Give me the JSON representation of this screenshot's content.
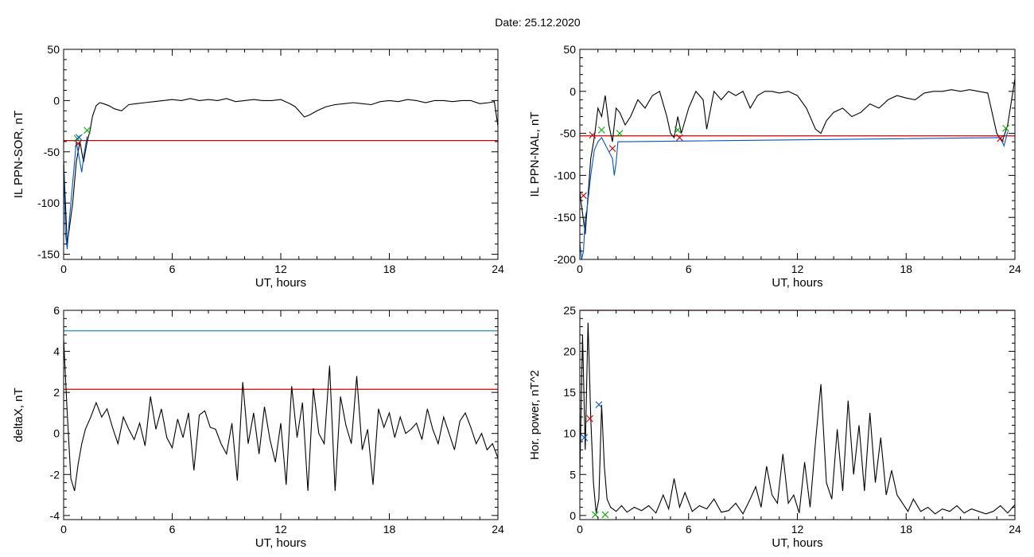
{
  "header": {
    "date_label": "Date:  25.12.2020"
  },
  "chart_data": [
    {
      "type": "line",
      "ylabel": "IL PPN-SOR, nT",
      "xlabel": "UT, hours",
      "xlim": [
        0,
        24
      ],
      "ylim": [
        -155,
        50
      ],
      "xticks": [
        0,
        6,
        12,
        18,
        24
      ],
      "yticks": [
        -150,
        -100,
        -50,
        0,
        50
      ],
      "threshold": {
        "value": -39,
        "color": "#cc0000"
      },
      "series": [
        {
          "color": "#000000",
          "x": [
            0.0,
            0.2,
            0.35,
            0.5,
            0.7,
            0.9,
            1.1,
            1.3,
            1.45,
            1.6,
            1.8,
            2.0,
            2.2,
            2.5,
            2.8,
            3.2,
            3.6,
            4.0,
            4.5,
            5.0,
            5.5,
            6.0,
            6.5,
            7.0,
            7.5,
            8.0,
            8.5,
            9.0,
            9.5,
            10.0,
            10.5,
            11.0,
            11.5,
            12.0,
            12.5,
            12.8,
            13.0,
            13.3,
            13.6,
            14.0,
            14.5,
            15.0,
            15.5,
            16.0,
            16.5,
            17.0,
            17.5,
            18.0,
            18.5,
            19.0,
            19.5,
            20.0,
            20.5,
            21.0,
            21.5,
            22.0,
            22.5,
            23.0,
            23.5,
            23.8,
            24.0
          ],
          "y": [
            -60,
            -140,
            -120,
            -100,
            -60,
            -40,
            -60,
            -40,
            -30,
            -15,
            -5,
            -2,
            -3,
            -5,
            -8,
            -10,
            -4,
            -3,
            -2,
            -1,
            0,
            1,
            0,
            2,
            0,
            1,
            0,
            2,
            -1,
            0,
            1,
            0,
            0,
            1,
            -3,
            -6,
            -10,
            -16,
            -14,
            -10,
            -6,
            -4,
            -3,
            -2,
            -3,
            -4,
            -1,
            0,
            -1,
            1,
            0,
            -2,
            0,
            0,
            -1,
            0,
            0,
            -3,
            -2,
            -1,
            -25
          ]
        },
        {
          "color": "#0055cc",
          "x": [
            0.0,
            0.1,
            0.2,
            0.3,
            0.4,
            0.5,
            0.6,
            0.7,
            0.8,
            0.9,
            1.0,
            1.1,
            1.2,
            1.3
          ],
          "y": [
            -60,
            -130,
            -145,
            -120,
            -100,
            -80,
            -60,
            -40,
            -50,
            -60,
            -70,
            -55,
            -45,
            -35
          ]
        }
      ],
      "markers": [
        {
          "x": 0.8,
          "y": -42,
          "color": "#cc0000"
        },
        {
          "x": 0.75,
          "y": -37,
          "color": "#00aa00"
        },
        {
          "x": 1.3,
          "y": -29,
          "color": "#00aa00"
        },
        {
          "x": 0.85,
          "y": -36,
          "color": "#0055cc"
        }
      ]
    },
    {
      "type": "line",
      "ylabel": "IL PPN-NAL, nT",
      "xlabel": "UT, hours",
      "xlim": [
        0,
        24
      ],
      "ylim": [
        -200,
        50
      ],
      "xticks": [
        0,
        6,
        12,
        18,
        24
      ],
      "yticks": [
        -200,
        -150,
        -100,
        -50,
        0,
        50
      ],
      "threshold": {
        "value": -53,
        "color": "#cc0000"
      },
      "series": [
        {
          "color": "#000000",
          "x": [
            0.0,
            0.3,
            0.6,
            0.8,
            1.0,
            1.2,
            1.4,
            1.6,
            1.8,
            2.0,
            2.2,
            2.5,
            2.8,
            3.2,
            3.6,
            4.0,
            4.4,
            4.8,
            5.0,
            5.2,
            5.4,
            5.6,
            6.0,
            6.4,
            6.8,
            7.0,
            7.4,
            7.8,
            8.2,
            8.6,
            9.0,
            9.4,
            9.8,
            10.2,
            10.6,
            11.0,
            11.5,
            12.0,
            12.5,
            13.0,
            13.3,
            13.6,
            14.0,
            14.5,
            15.0,
            15.5,
            16.0,
            16.5,
            17.0,
            17.5,
            18.0,
            18.5,
            19.0,
            19.5,
            20.0,
            20.5,
            21.0,
            21.5,
            22.0,
            22.5,
            23.0,
            23.3,
            23.6,
            24.0
          ],
          "y": [
            -120,
            -170,
            -80,
            -55,
            -20,
            -30,
            -5,
            -40,
            -60,
            -20,
            -25,
            -40,
            -30,
            -10,
            -20,
            -5,
            0,
            -30,
            -50,
            -55,
            -30,
            -50,
            -20,
            0,
            -10,
            -45,
            0,
            -10,
            0,
            -5,
            0,
            -20,
            -5,
            0,
            0,
            -2,
            0,
            -5,
            -20,
            -45,
            -50,
            -35,
            -25,
            -20,
            -30,
            -25,
            -15,
            -20,
            -10,
            -5,
            -8,
            -10,
            -2,
            0,
            0,
            2,
            0,
            2,
            0,
            -2,
            -50,
            -60,
            -40,
            15
          ]
        },
        {
          "color": "#0055cc",
          "x": [
            0.0,
            0.1,
            0.2,
            0.3,
            0.4,
            0.5,
            0.6,
            0.8,
            1.0,
            1.2,
            1.8,
            1.9,
            2.0,
            2.1,
            23.2,
            23.4,
            23.6
          ],
          "y": [
            -180,
            -200,
            -190,
            -150,
            -140,
            -120,
            -100,
            -70,
            -60,
            -55,
            -80,
            -100,
            -85,
            -60,
            -55,
            -65,
            -48
          ]
        }
      ],
      "markers": [
        {
          "x": 0.7,
          "y": -52,
          "color": "#cc0000"
        },
        {
          "x": 1.8,
          "y": -68,
          "color": "#cc0000"
        },
        {
          "x": 5.5,
          "y": -55,
          "color": "#cc0000"
        },
        {
          "x": 23.2,
          "y": -56,
          "color": "#cc0000"
        },
        {
          "x": 1.2,
          "y": -46,
          "color": "#00aa00"
        },
        {
          "x": 2.2,
          "y": -50,
          "color": "#00aa00"
        },
        {
          "x": 5.4,
          "y": -46,
          "color": "#00aa00"
        },
        {
          "x": 23.5,
          "y": -44,
          "color": "#00aa00"
        },
        {
          "x": 0.2,
          "y": -124,
          "color": "#cc0000"
        }
      ]
    },
    {
      "type": "line",
      "ylabel": "deltaX, nT",
      "xlabel": "UT, hours",
      "xlim": [
        0,
        24
      ],
      "ylim": [
        -4.2,
        6
      ],
      "xticks": [
        0,
        6,
        12,
        18,
        24
      ],
      "yticks": [
        -4,
        -2,
        0,
        2,
        4,
        6
      ],
      "thresholds": [
        {
          "value": 5.0,
          "color": "#1f8fb0"
        },
        {
          "value": 2.15,
          "color": "#cc0000"
        }
      ],
      "series": [
        {
          "color": "#000000",
          "x": [
            0.0,
            0.2,
            0.4,
            0.6,
            0.8,
            1.0,
            1.2,
            1.5,
            1.8,
            2.1,
            2.4,
            2.7,
            3.0,
            3.3,
            3.6,
            3.9,
            4.2,
            4.5,
            4.8,
            5.1,
            5.4,
            5.7,
            6.0,
            6.3,
            6.6,
            6.9,
            7.2,
            7.5,
            7.8,
            8.1,
            8.4,
            8.7,
            9.0,
            9.3,
            9.6,
            9.9,
            10.2,
            10.5,
            10.8,
            11.1,
            11.4,
            11.7,
            12.0,
            12.3,
            12.6,
            12.9,
            13.2,
            13.5,
            13.8,
            14.1,
            14.4,
            14.7,
            15.0,
            15.3,
            15.6,
            15.9,
            16.2,
            16.5,
            16.8,
            17.1,
            17.4,
            17.7,
            18.0,
            18.3,
            18.6,
            18.9,
            19.2,
            19.5,
            19.8,
            20.1,
            20.4,
            20.7,
            21.0,
            21.3,
            21.6,
            21.9,
            22.2,
            22.5,
            22.8,
            23.1,
            23.4,
            23.7,
            24.0
          ],
          "y": [
            4.6,
            1.0,
            -2.2,
            -2.8,
            -1.5,
            -0.5,
            0.2,
            0.8,
            1.5,
            0.8,
            1.2,
            0.3,
            -0.5,
            0.8,
            0.2,
            -0.3,
            0.5,
            -0.6,
            1.8,
            0.2,
            1.2,
            -0.2,
            -0.7,
            0.7,
            -0.2,
            1.0,
            -1.8,
            0.9,
            1.1,
            0.3,
            0.2,
            -0.5,
            -1.0,
            0.5,
            -2.3,
            2.5,
            -0.5,
            1.0,
            -1.0,
            1.3,
            -0.3,
            -1.4,
            0.5,
            -2.5,
            2.3,
            -0.2,
            1.5,
            -2.8,
            2.2,
            0.0,
            -0.5,
            3.3,
            -2.8,
            1.8,
            0.4,
            -0.5,
            2.8,
            -0.8,
            0.2,
            -2.5,
            1.2,
            0.3,
            1.0,
            -0.2,
            0.8,
            0.0,
            0.2,
            0.5,
            -0.3,
            1.2,
            0.2,
            -0.5,
            0.8,
            0.0,
            -0.8,
            0.6,
            1.0,
            0.3,
            -0.5,
            0.0,
            -0.8,
            -0.5,
            -1.2
          ]
        }
      ],
      "markers": []
    },
    {
      "type": "line",
      "ylabel": "Hor. power, nT^2",
      "xlabel": "UT, hours",
      "xlim": [
        0,
        24
      ],
      "ylim": [
        -0.5,
        25
      ],
      "xticks": [
        0,
        6,
        12,
        18,
        24
      ],
      "yticks": [
        0,
        5,
        10,
        15,
        20,
        25
      ],
      "threshold": {
        "value": 25,
        "color": "#cc0000"
      },
      "series": [
        {
          "color": "#000000",
          "x": [
            0.0,
            0.15,
            0.3,
            0.45,
            0.6,
            0.75,
            0.9,
            1.05,
            1.2,
            1.35,
            1.5,
            1.7,
            2.0,
            2.3,
            2.6,
            3.0,
            3.4,
            3.8,
            4.2,
            4.6,
            4.9,
            5.2,
            5.5,
            5.8,
            6.2,
            6.6,
            7.0,
            7.4,
            7.8,
            8.2,
            8.6,
            9.0,
            9.4,
            9.7,
            10.0,
            10.3,
            10.6,
            10.9,
            11.2,
            11.5,
            11.8,
            12.1,
            12.4,
            12.7,
            13.0,
            13.3,
            13.6,
            13.9,
            14.2,
            14.5,
            14.8,
            15.1,
            15.4,
            15.7,
            16.0,
            16.3,
            16.6,
            16.9,
            17.2,
            17.5,
            17.8,
            18.1,
            18.4,
            18.8,
            19.2,
            19.6,
            20.0,
            20.4,
            20.8,
            21.2,
            21.6,
            22.0,
            22.4,
            22.8,
            23.2,
            23.6,
            24.0
          ],
          "y": [
            5,
            22,
            8,
            23.5,
            12,
            4,
            0.3,
            2,
            13.5,
            6,
            2,
            1,
            0.5,
            1.2,
            0.4,
            1.0,
            0.6,
            1.2,
            0.3,
            2.5,
            0.8,
            4.5,
            1.0,
            2.8,
            0.5,
            1.2,
            0.8,
            2.0,
            0.4,
            0.6,
            1.5,
            0.2,
            2.0,
            3.5,
            1.0,
            6.0,
            2.5,
            1.5,
            7.5,
            1.5,
            2.5,
            0.3,
            6.5,
            1.0,
            9.0,
            16.0,
            4.0,
            2.0,
            10.5,
            3.0,
            14.0,
            5.0,
            11.0,
            3.0,
            12.5,
            4.0,
            9.5,
            2.5,
            5.5,
            2.5,
            1.5,
            0.5,
            2.0,
            0.5,
            1.0,
            0.2,
            0.8,
            0.5,
            1.2,
            0.3,
            0.8,
            0.5,
            0.2,
            0.5,
            1.2,
            0.3,
            1.3
          ]
        }
      ],
      "markers": [
        {
          "x": 0.25,
          "y": 9.5,
          "color": "#0055cc"
        },
        {
          "x": 0.55,
          "y": 11.8,
          "color": "#cc0000"
        },
        {
          "x": 1.05,
          "y": 13.5,
          "color": "#0055cc"
        },
        {
          "x": 0.85,
          "y": 0.1,
          "color": "#00aa00"
        },
        {
          "x": 1.4,
          "y": 0.1,
          "color": "#00aa00"
        }
      ]
    }
  ]
}
